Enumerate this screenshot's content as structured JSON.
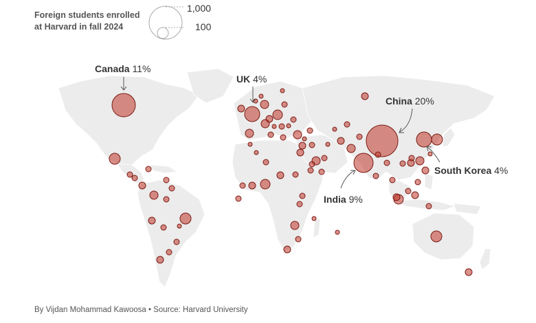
{
  "legend": {
    "title": "Foreign students enrolled\nat Harvard in fall 2024",
    "big_label": "1,000",
    "small_label": "100"
  },
  "labels": {
    "canada": {
      "name": "Canada",
      "pct": "11%"
    },
    "uk": {
      "name": "UK",
      "pct": "4%"
    },
    "china": {
      "name": "China",
      "pct": "20%"
    },
    "india": {
      "name": "India",
      "pct": "9%"
    },
    "south_korea": {
      "name": "South Korea",
      "pct": "4%"
    }
  },
  "credit": "By Vijdan Mohammad Kawoosa • Source: Harvard University",
  "colors": {
    "bubble_fill": "#c0392b",
    "bubble_stroke": "#7a1a12",
    "land": "#ececec",
    "text": "#333333"
  }
}
